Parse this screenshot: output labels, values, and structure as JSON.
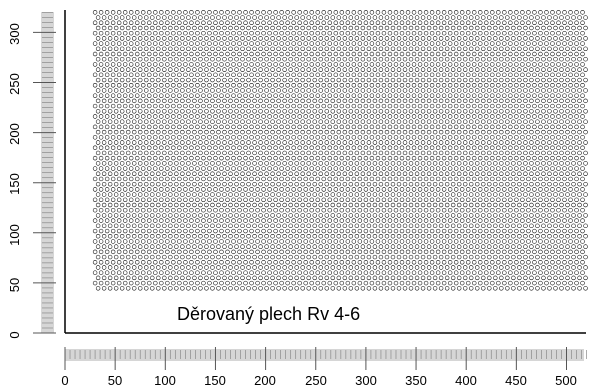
{
  "caption": "Děrovaný plech Rv 4-6",
  "sheet": {
    "pattern": "round holes, staggered 60°",
    "hole_diameter_mm": 4,
    "pitch_mm": 6,
    "x_range_mm": [
      30,
      520
    ],
    "y_range_mm": [
      40,
      320
    ]
  },
  "axes": {
    "x": {
      "range": [
        0,
        520
      ],
      "ticks": [
        "0",
        "50",
        "100",
        "150",
        "200",
        "250",
        "300",
        "350",
        "400",
        "450",
        "500"
      ]
    },
    "y": {
      "range": [
        0,
        320
      ],
      "ticks": [
        "0",
        "50",
        "100",
        "150",
        "200",
        "250",
        "300"
      ]
    },
    "ruler_style": "grey millimetre ruler"
  },
  "colors": {
    "background": "#ffffff",
    "ink": "#000000",
    "ruler": "#d6d6d6",
    "ruler_tick": "#8a8a8a"
  }
}
